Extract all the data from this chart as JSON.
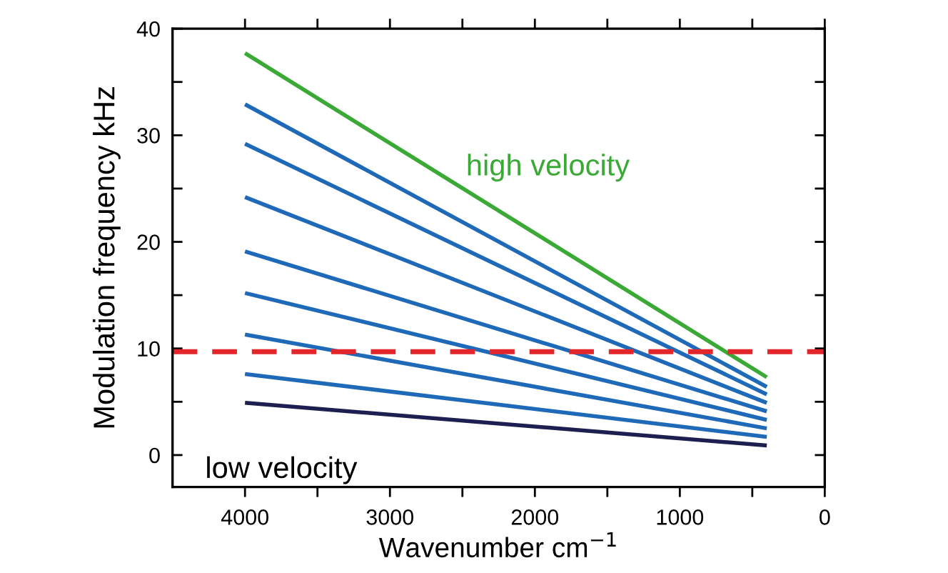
{
  "chart_data": {
    "type": "line",
    "xlabel": "Wavenumber cm$^{−1}$",
    "ylabel": "Modulation frequency kHz",
    "x": [
      4000,
      400
    ],
    "xlim": [
      4500,
      0
    ],
    "xticks": [
      4000,
      {
        "value": 3500,
        "label": null
      },
      3000,
      {
        "value": 2500,
        "label": null
      },
      2000,
      {
        "value": 1500,
        "label": null
      },
      1000,
      {
        "value": 500,
        "label": null
      },
      0
    ],
    "ylim": [
      -3,
      40
    ],
    "yticks": [
      0,
      {
        "value": 5,
        "label": null
      },
      10,
      {
        "value": 15,
        "label": null
      },
      20,
      {
        "value": 25,
        "label": null
      },
      30,
      {
        "value": 35,
        "label": null
      },
      40
    ],
    "series": [
      {
        "color": "#3aa935",
        "values": [
          37.7,
          7.3
        ]
      },
      {
        "color": "#1f6ab8",
        "values": [
          32.9,
          6.4
        ]
      },
      {
        "color": "#1f6ab8",
        "values": [
          29.2,
          5.7
        ]
      },
      {
        "color": "#1f6ab8",
        "values": [
          24.2,
          4.9
        ]
      },
      {
        "color": "#1f6ab8",
        "values": [
          19.1,
          4.1
        ]
      },
      {
        "color": "#1f6ab8",
        "values": [
          15.2,
          3.3
        ]
      },
      {
        "color": "#1f6ab8",
        "values": [
          11.3,
          2.5
        ]
      },
      {
        "color": "#1f6ab8",
        "values": [
          7.6,
          1.7
        ]
      },
      {
        "color": "#1c1f4f",
        "values": [
          4.9,
          0.9
        ]
      }
    ],
    "ref_lines": [
      {
        "axis": "y",
        "value": 9.7,
        "color": "#e3262b",
        "line_style": "dashed"
      }
    ],
    "annotations": [
      "high velocity",
      "low velocity"
    ],
    "grid": false,
    "legend": false,
    "marker": "none",
    "line_style": "solid"
  }
}
